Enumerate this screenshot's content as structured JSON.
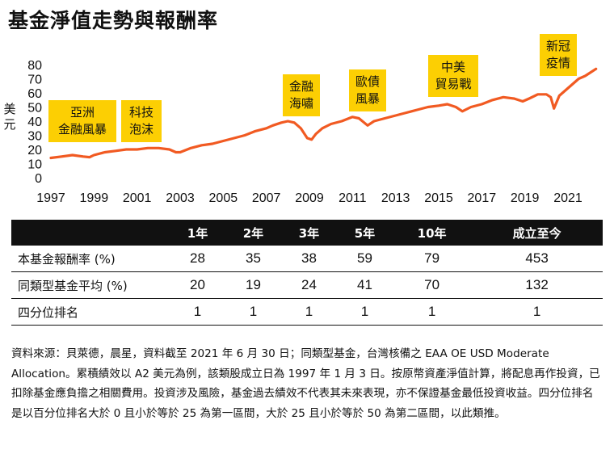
{
  "title": "基金淨值走勢與報酬率",
  "chart_data": {
    "type": "line",
    "ylabel": "美元",
    "ylim": [
      0,
      80
    ],
    "yticks": [
      0,
      10,
      20,
      30,
      40,
      50,
      60,
      70,
      80
    ],
    "xlim": [
      1997,
      2022.5
    ],
    "xticks": [
      1997,
      1999,
      2001,
      2003,
      2005,
      2007,
      2009,
      2011,
      2013,
      2015,
      2017,
      2019,
      2021
    ],
    "grid": false,
    "series": [
      {
        "color": "#f15a22",
        "x": [
          1997,
          1997.5,
          1998,
          1998.5,
          1998.8,
          1999,
          1999.5,
          2000,
          2000.5,
          2001,
          2001.5,
          2002,
          2002.5,
          2002.8,
          2003,
          2003.5,
          2004,
          2004.5,
          2005,
          2005.5,
          2006,
          2006.5,
          2007,
          2007.3,
          2007.7,
          2008,
          2008.3,
          2008.6,
          2008.9,
          2009.1,
          2009.3,
          2009.6,
          2010,
          2010.5,
          2011,
          2011.3,
          2011.7,
          2012,
          2012.5,
          2013,
          2013.5,
          2014,
          2014.5,
          2015,
          2015.4,
          2015.8,
          2016.1,
          2016.5,
          2017,
          2017.5,
          2018,
          2018.5,
          2018.9,
          2019.2,
          2019.6,
          2020,
          2020.2,
          2020.35,
          2020.6,
          2020.9,
          2021.2,
          2021.5,
          2021.8,
          2022,
          2022.3
        ],
        "y": [
          14,
          15,
          16,
          15,
          14.5,
          16,
          18,
          19,
          20,
          20,
          21,
          21,
          20,
          18,
          18,
          21,
          23,
          24,
          26,
          28,
          30,
          33,
          35,
          37,
          39,
          40,
          39,
          35,
          28,
          27,
          31,
          35,
          38,
          40,
          43,
          42,
          37,
          40,
          42,
          44,
          46,
          48,
          50,
          51,
          52,
          50,
          47,
          50,
          52,
          55,
          57,
          56,
          54,
          56,
          59,
          59,
          57,
          49,
          58,
          62,
          66,
          70,
          72,
          74,
          77
        ]
      }
    ],
    "annotations": [
      {
        "text": [
          "亞洲",
          "金融風暴"
        ]
      },
      {
        "text": [
          "科技",
          "泡沫"
        ]
      },
      {
        "text": [
          "金融",
          "海嘯"
        ]
      },
      {
        "text": [
          "歐債",
          "風暴"
        ]
      },
      {
        "text": [
          "中美",
          "貿易戰"
        ]
      },
      {
        "text": [
          "新冠",
          "疫情"
        ]
      }
    ]
  },
  "table": {
    "headers": [
      "",
      "1年",
      "2年",
      "3年",
      "5年",
      "10年",
      "成立至今"
    ],
    "rows": [
      {
        "label": "本基金報酬率 (%)",
        "values": [
          "28",
          "35",
          "38",
          "59",
          "79",
          "453"
        ]
      },
      {
        "label": "同類型基金平均 (%)",
        "values": [
          "20",
          "19",
          "24",
          "41",
          "70",
          "132"
        ]
      },
      {
        "label": "四分位排名",
        "values": [
          "1",
          "1",
          "1",
          "1",
          "1",
          "1"
        ]
      }
    ]
  },
  "note": "資料來源：貝萊德，晨星，資料截至 2021 年 6 月 30 日；同類型基金，台灣核備之 EAA OE USD Moderate Allocation。累積績效以 A2 美元為例，該類股成立日為 1997 年 1 月 3 日。按原幣資產淨值計算，將配息再作投資，已扣除基金應負擔之相關費用。投資涉及風險，基金過去績效不代表其未來表現，亦不保證基金最低投資收益。四分位排名是以百分位排名大於 0 且小於等於 25 為第一區間，大於 25 且小於等於 50 為第二區間，以此類推。"
}
